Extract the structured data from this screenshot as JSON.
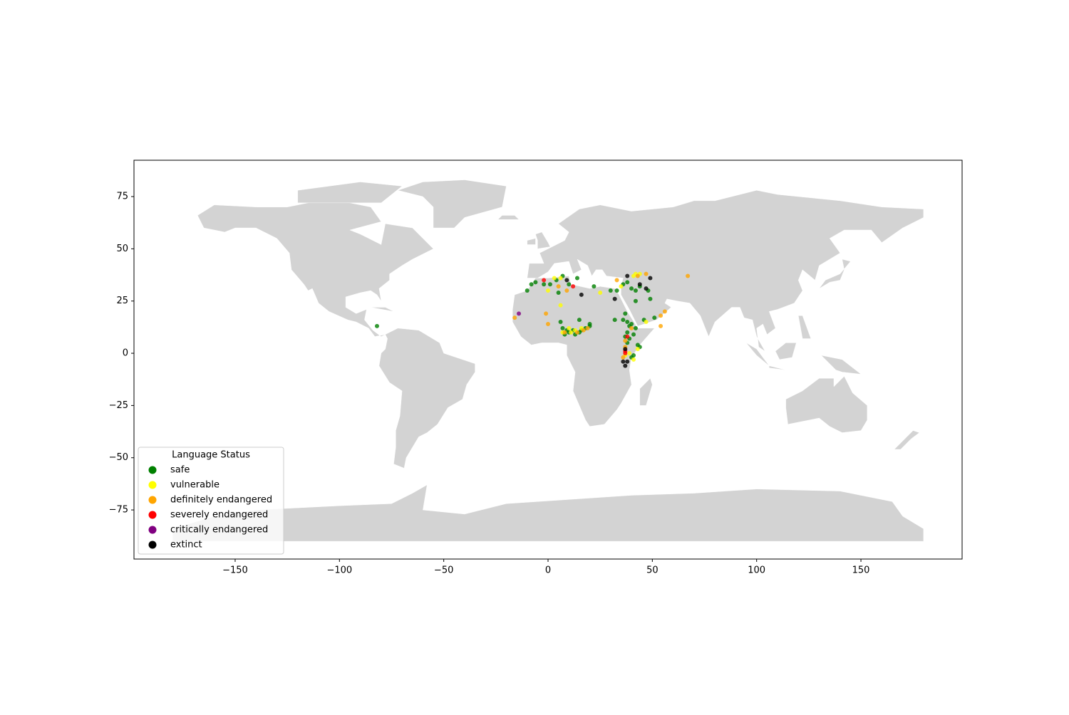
{
  "chart_data": {
    "type": "scatter",
    "legend_title": "Language Status",
    "legend": "lower left",
    "grid": false,
    "xlim": [
      -198.5,
      198.5
    ],
    "ylim": [
      -98.5,
      92.4
    ],
    "xticks": [
      {
        "value": -150,
        "label": "−150"
      },
      {
        "value": -100,
        "label": "−100"
      },
      {
        "value": -50,
        "label": "−50"
      },
      0,
      50,
      100,
      150
    ],
    "yticks": [
      {
        "value": -75,
        "label": "−75"
      },
      {
        "value": -50,
        "label": "−50"
      },
      {
        "value": -25,
        "label": "−25"
      },
      0,
      25,
      50,
      75
    ],
    "series": [
      {
        "name": "safe",
        "color": "#008000",
        "x": [
          -82,
          -8,
          -6,
          -2,
          1,
          4,
          7,
          10,
          14,
          5,
          -10,
          22,
          30,
          33,
          38,
          36,
          40,
          42,
          44,
          48,
          49,
          42,
          36,
          37,
          38,
          39,
          40,
          38,
          37,
          39,
          38,
          41,
          42,
          43,
          44,
          40,
          41,
          46,
          51,
          32,
          7,
          8,
          9,
          10,
          12,
          13,
          15,
          16,
          18,
          20,
          20,
          6,
          15
        ],
        "y": [
          13,
          33,
          34,
          33,
          33,
          35,
          37,
          33,
          36,
          29,
          30,
          32,
          30,
          30,
          34,
          33,
          31,
          30,
          32,
          30,
          26,
          25,
          16,
          19,
          15,
          13,
          14,
          10,
          8,
          7,
          5,
          9,
          12,
          4,
          3,
          -2,
          -1,
          16,
          17,
          16,
          12,
          9,
          11,
          10,
          11,
          9,
          10,
          11,
          12,
          13,
          14,
          15,
          16
        ]
      },
      {
        "name": "vulnerable",
        "color": "#ffff00",
        "x": [
          3,
          6,
          0,
          6,
          35,
          41,
          42,
          44,
          25,
          47,
          10,
          11,
          13,
          16,
          7,
          39,
          41,
          43,
          37
        ],
        "y": [
          36,
          36,
          30,
          23,
          32,
          37,
          38,
          38,
          29,
          15,
          12,
          10,
          11,
          12,
          10,
          0,
          -3,
          2,
          -1
        ]
      },
      {
        "name": "definitely endangered",
        "color": "#ffa500",
        "x": [
          -16,
          -1,
          0,
          5,
          9,
          33,
          43,
          47,
          67,
          56,
          54,
          54,
          19,
          17,
          8,
          14,
          36,
          37,
          37,
          40
        ],
        "y": [
          17,
          19,
          14,
          32,
          30,
          35,
          37,
          38,
          37,
          20,
          18,
          13,
          12,
          11,
          10,
          10,
          -2,
          3,
          6,
          12
        ]
      },
      {
        "name": "severely endangered",
        "color": "#ff0000",
        "x": [
          -2,
          12,
          37,
          38,
          37
        ],
        "y": [
          35,
          32,
          0,
          8,
          1
        ]
      },
      {
        "name": "critically endangered",
        "color": "#800080",
        "x": [
          -14
        ],
        "y": [
          19
        ]
      },
      {
        "name": "extinct",
        "color": "#000000",
        "x": [
          9,
          16,
          32,
          38,
          49,
          47,
          44,
          36,
          37,
          37,
          38
        ],
        "y": [
          35,
          28,
          26,
          37,
          36,
          31,
          33,
          -4,
          -6,
          2,
          -4
        ]
      }
    ]
  }
}
